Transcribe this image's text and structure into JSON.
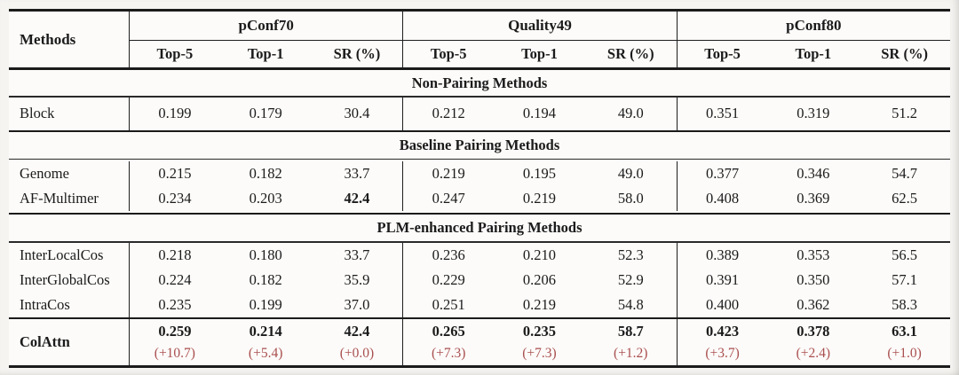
{
  "colors": {
    "delta_red": "#a94f4f",
    "rule": "#1b1b1b",
    "paper": "#fcfbf9"
  },
  "table": {
    "header": {
      "methods_label": "Methods",
      "groups": [
        {
          "label": "pConf70"
        },
        {
          "label": "Quality49"
        },
        {
          "label": "pConf80"
        }
      ],
      "subcols": [
        "Top-5",
        "Top-1",
        "SR (%)"
      ]
    },
    "sections": [
      {
        "title": "Non-Pairing Methods",
        "rows": [
          {
            "method": "Block",
            "values": [
              "0.199",
              "0.179",
              "30.4",
              "0.212",
              "0.194",
              "49.0",
              "0.351",
              "0.319",
              "51.2"
            ]
          }
        ]
      },
      {
        "title": "Baseline Pairing Methods",
        "rows": [
          {
            "method": "Genome",
            "values": [
              "0.215",
              "0.182",
              "33.7",
              "0.219",
              "0.195",
              "49.0",
              "0.377",
              "0.346",
              "54.7"
            ]
          },
          {
            "method": "AF-Multimer",
            "values": [
              "0.234",
              "0.203",
              "42.4",
              "0.247",
              "0.219",
              "58.0",
              "0.408",
              "0.369",
              "62.5"
            ]
          }
        ]
      },
      {
        "title": "PLM-enhanced Pairing Methods",
        "rows": [
          {
            "method": "InterLocalCos",
            "values": [
              "0.218",
              "0.180",
              "33.7",
              "0.236",
              "0.210",
              "52.3",
              "0.389",
              "0.353",
              "56.5"
            ]
          },
          {
            "method": "InterGlobalCos",
            "values": [
              "0.224",
              "0.182",
              "35.9",
              "0.229",
              "0.206",
              "52.9",
              "0.391",
              "0.350",
              "57.1"
            ]
          },
          {
            "method": "IntraCos",
            "values": [
              "0.235",
              "0.199",
              "37.0",
              "0.251",
              "0.219",
              "54.8",
              "0.400",
              "0.362",
              "58.3"
            ]
          }
        ]
      }
    ],
    "highlight": {
      "method": "ColAttn",
      "values": [
        "0.259",
        "0.214",
        "42.4",
        "0.265",
        "0.235",
        "58.7",
        "0.423",
        "0.378",
        "63.1"
      ],
      "deltas": [
        "(+10.7)",
        "(+5.4)",
        "(+0.0)",
        "(+7.3)",
        "(+7.3)",
        "(+1.2)",
        "(+3.7)",
        "(+2.4)",
        "(+1.0)"
      ]
    }
  }
}
